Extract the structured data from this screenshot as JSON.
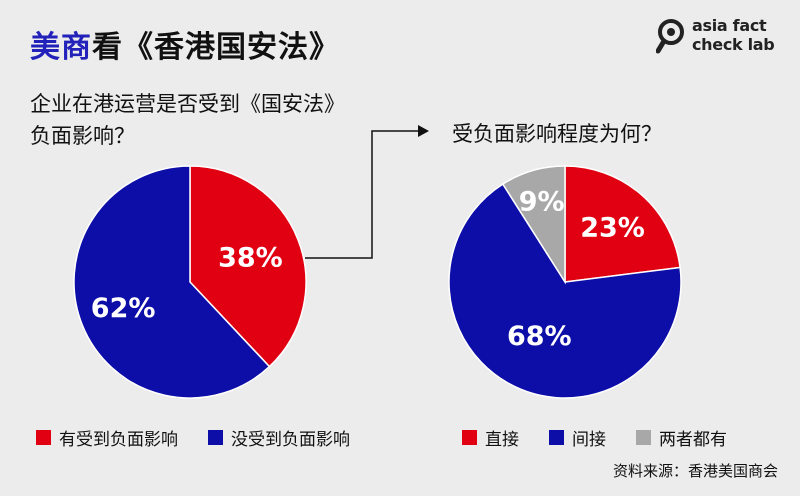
{
  "header": {
    "title_accent": "美商",
    "title_rest": "看《香港国安法》",
    "logo_line1": "asia fact",
    "logo_line2": "check lab"
  },
  "colors": {
    "red": "#e00012",
    "blue": "#0d0da8",
    "gray": "#a8a8a8"
  },
  "chart_data": [
    {
      "type": "pie",
      "title": "企业在港运营是否受到《国安法》负面影响？",
      "title_line1": "企业在港运营是否受到《国安法》",
      "title_line2": "负面影响？",
      "slices": [
        {
          "name": "有受到负面影响",
          "value": 38,
          "label": "38%",
          "color": "#e00012"
        },
        {
          "name": "没受到负面影响",
          "value": 62,
          "label": "62%",
          "color": "#0d0da8"
        }
      ],
      "legend_placement": "bottom"
    },
    {
      "type": "pie",
      "title": "受负面影响程度为何？",
      "slices": [
        {
          "name": "直接",
          "value": 23,
          "label": "23%",
          "color": "#e00012"
        },
        {
          "name": "间接",
          "value": 68,
          "label": "68%",
          "color": "#0d0da8"
        },
        {
          "name": "两者都有",
          "value": 9,
          "label": "9%",
          "color": "#a8a8a8"
        }
      ],
      "legend_placement": "bottom"
    }
  ],
  "source": "资料来源：香港美国商会"
}
